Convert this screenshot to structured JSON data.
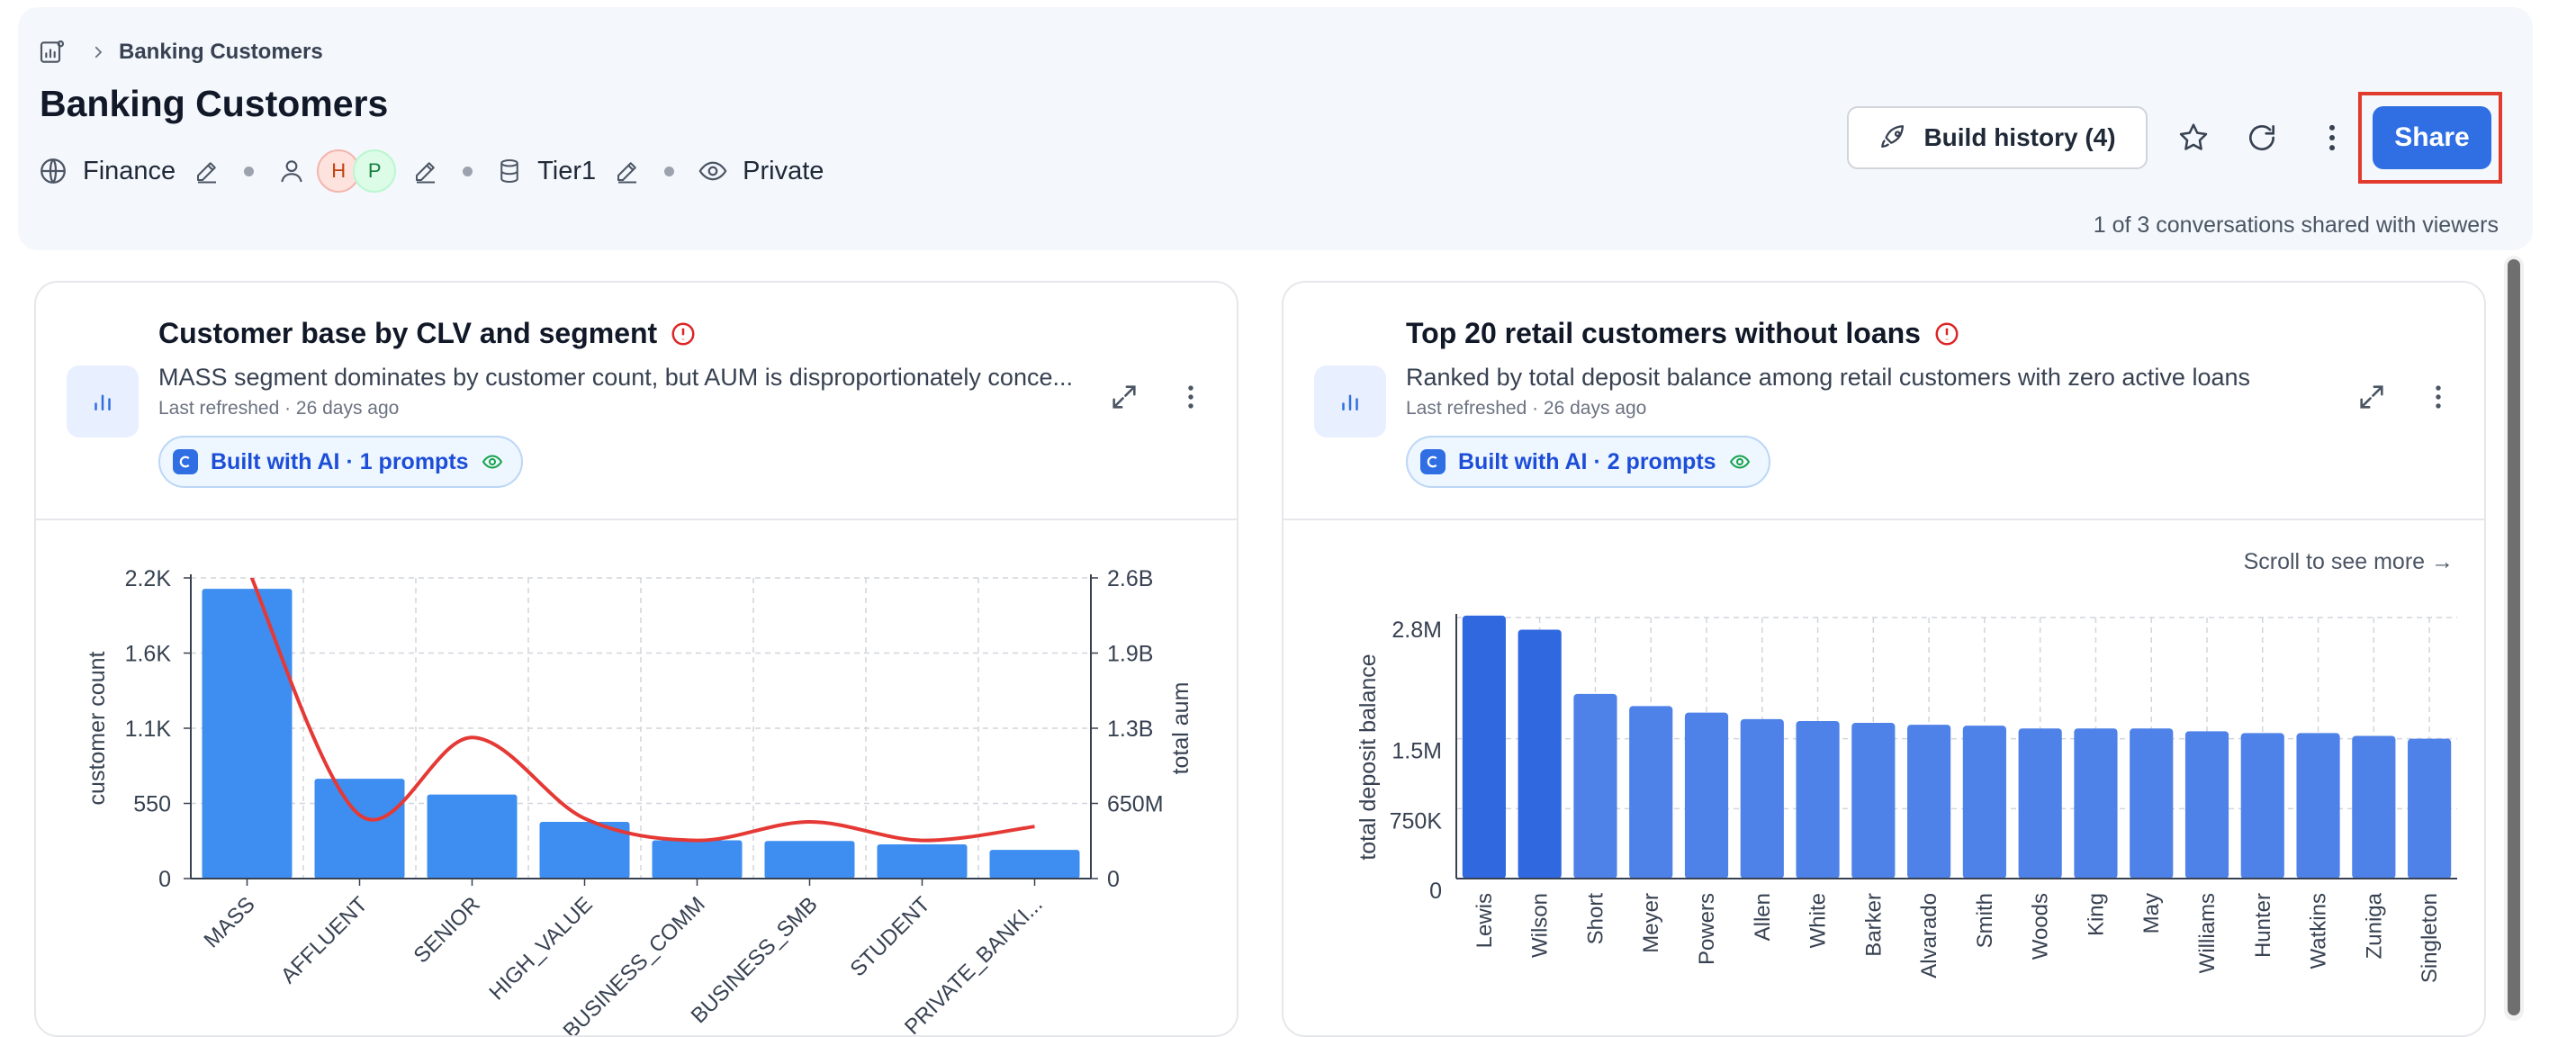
{
  "breadcrumb": {
    "current": "Banking Customers"
  },
  "page": {
    "title": "Banking Customers",
    "meta": {
      "domain": "Finance",
      "avatars": [
        "H",
        "P"
      ],
      "tier": "Tier1",
      "visibility": "Private"
    },
    "shared_note": "1 of 3 conversations shared with viewers"
  },
  "toolbar": {
    "build_history": "Build history (4)",
    "share": "Share"
  },
  "cards": [
    {
      "title": "Customer base by CLV and segment",
      "description": "MASS segment dominates by customer count, but AUM is disproportionately conce...",
      "refreshed": "Last refreshed · 26 days ago",
      "ai_pill": "Built with AI · 1 prompts"
    },
    {
      "title": "Top 20 retail customers without loans",
      "description": "Ranked by total deposit balance among retail customers with zero active loans",
      "refreshed": "Last refreshed · 26 days ago",
      "ai_pill": "Built with AI · 2 prompts",
      "scroll_hint": "Scroll to see more →"
    }
  ],
  "colors": {
    "accent": "#2f6fe3",
    "bar_left": "#3d8ef0",
    "bar_right": "#4f82e8",
    "bar_right_top": "#3068e0",
    "line": "#e53935",
    "highlight": "#e03b2c"
  },
  "chart_data": [
    {
      "type": "bar",
      "title": "Customer base by CLV and segment",
      "categories": [
        "MASS",
        "AFFLUENT",
        "SENIOR",
        "HIGH_VALUE",
        "BUSINESS_COMM",
        "BUSINESS_SMB",
        "STUDENT",
        "PRIVATE_BANKI..."
      ],
      "series": [
        {
          "axis": "left",
          "type": "bar",
          "values": [
            2120,
            730,
            615,
            415,
            280,
            275,
            250,
            210
          ]
        },
        {
          "axis": "right",
          "type": "line",
          "smooth": true,
          "values": [
            2700000000,
            550000000,
            1220000000,
            520000000,
            330000000,
            490000000,
            330000000,
            450000000
          ]
        }
      ],
      "ylabel": "customer count",
      "y2label": "total aum",
      "ylim": [
        0,
        2200
      ],
      "y2lim": [
        0,
        2600000000
      ],
      "yticks": [
        "0",
        "550",
        "1.1K",
        "1.6K",
        "2.2K"
      ],
      "y2ticks": [
        "0",
        "650M",
        "1.3B",
        "1.9B",
        "2.6B"
      ],
      "grid": true
    },
    {
      "type": "bar",
      "title": "Top 20 retail customers without loans",
      "categories": [
        "Lewis",
        "Wilson",
        "Short",
        "Meyer",
        "Powers",
        "Allen",
        "White",
        "Barker",
        "Alvarado",
        "Smith",
        "Woods",
        "King",
        "May",
        "Williams",
        "Hunter",
        "Watkins",
        "Zuniga",
        "Singleton"
      ],
      "values": [
        2820000,
        2670000,
        1980000,
        1850000,
        1780000,
        1710000,
        1690000,
        1670000,
        1650000,
        1640000,
        1610000,
        1610000,
        1610000,
        1580000,
        1560000,
        1560000,
        1530000,
        1500000
      ],
      "ylabel": "total deposit balance",
      "ylim": [
        0,
        2800000
      ],
      "yticks": [
        "0",
        "750K",
        "1.5M",
        "2.8M"
      ],
      "grid": true
    }
  ]
}
